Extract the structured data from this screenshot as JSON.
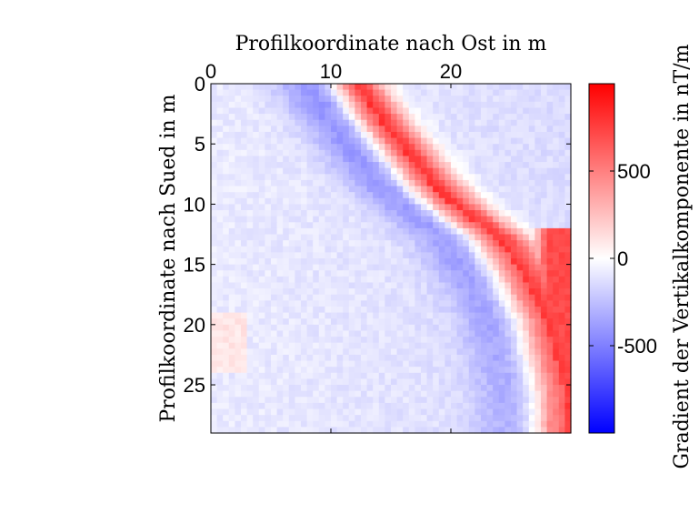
{
  "chart_data": {
    "type": "heatmap",
    "title": "",
    "xlabel": "Profilkoordinate nach Ost in m",
    "ylabel": "Profilkoordinate nach Sued in m",
    "x_ticks": [
      0,
      10,
      20
    ],
    "y_ticks": [
      0,
      5,
      10,
      15,
      20,
      25
    ],
    "xlim": [
      0,
      30
    ],
    "ylim": [
      0,
      29
    ],
    "x_axis_position": "top",
    "y_axis_direction": "reversed",
    "grid": false,
    "colorbar": {
      "label": "Gradient der Vertikalkomponente in nT/m",
      "ticks": [
        -500,
        0,
        500
      ],
      "clim": [
        -1000,
        1000
      ],
      "colormap": [
        "#0000ff",
        "#ffffff",
        "#ff0000"
      ]
    },
    "anomaly_band": {
      "description_values": "approx. center-line of strong positive gradient (x in m, y in m)",
      "x": [
        12,
        14,
        16,
        18,
        20,
        22,
        24,
        26,
        28,
        29.5
      ],
      "y": [
        0,
        3,
        5.5,
        8,
        10,
        11.5,
        13,
        16,
        20,
        26
      ]
    },
    "value_range_estimate": [
      -600,
      950
    ]
  }
}
